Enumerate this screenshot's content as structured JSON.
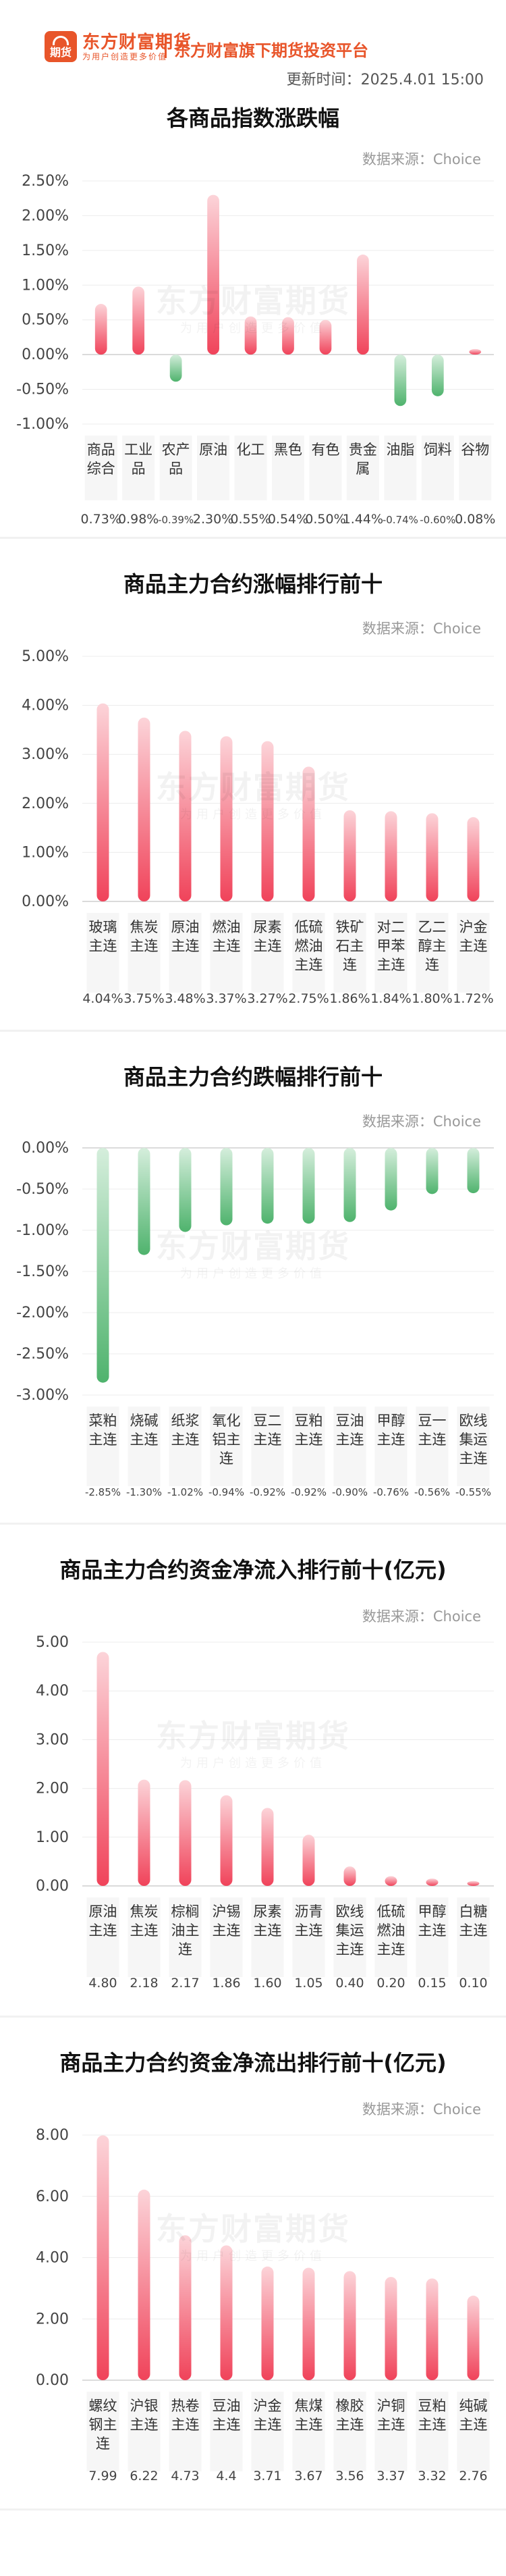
{
  "header": {
    "logo_badge": "期货",
    "logo_name": "东方财富期货",
    "logo_tagline": "为用户创造更多价值",
    "platform": "东方财富旗下期货投资平台",
    "update_time": "更新时间：2025.4.01 15:00"
  },
  "watermark": {
    "name": "东方财富期货",
    "tagline": "为用户创造更多价值"
  },
  "colors": {
    "up": "#f0435a",
    "up_light": "#fcd4d9",
    "down": "#4fb36d",
    "down_light": "#d5eedc"
  },
  "chart_data": [
    {
      "id": "c1",
      "type": "bar",
      "title": "各商品指数涨跌幅",
      "source": "数据来源：Choice",
      "categories": [
        "商品\n综合",
        "工业\n品",
        "农产\n品",
        "原油",
        "化工",
        "黑色",
        "有色",
        "贵金\n属",
        "油脂",
        "饲料",
        "谷物"
      ],
      "values": [
        0.73,
        0.98,
        -0.39,
        2.3,
        0.55,
        0.54,
        0.5,
        1.44,
        -0.74,
        -0.6,
        0.08
      ],
      "value_labels": [
        "0.73%",
        "0.98%",
        "-0.39%",
        "2.30%",
        "0.55%",
        "0.54%",
        "0.50%",
        "1.44%",
        "-0.74%",
        "-0.60%",
        "0.08%"
      ],
      "yticks": [
        2.5,
        2.0,
        1.5,
        1.0,
        0.5,
        0,
        -0.5,
        -1.0
      ],
      "ytick_labels": [
        "2.50%",
        "2.00%",
        "1.50%",
        "1.00%",
        "0.50%",
        "0.00%",
        "-0.50%",
        "-1.00%"
      ],
      "ylim": [
        -1.0,
        2.5
      ]
    },
    {
      "id": "c2",
      "type": "bar",
      "title": "商品主力合约涨幅排行前十",
      "source": "数据来源：Choice",
      "categories": [
        "玻璃\n主连",
        "焦炭\n主连",
        "原油\n主连",
        "燃油\n主连",
        "尿素\n主连",
        "低硫\n燃油\n主连",
        "铁矿\n石主\n连",
        "对二\n甲苯\n主连",
        "乙二\n醇主\n连",
        "沪金\n主连"
      ],
      "values": [
        4.04,
        3.75,
        3.48,
        3.37,
        3.27,
        2.75,
        1.86,
        1.84,
        1.8,
        1.72
      ],
      "value_labels": [
        "4.04%",
        "3.75%",
        "3.48%",
        "3.37%",
        "3.27%",
        "2.75%",
        "1.86%",
        "1.84%",
        "1.80%",
        "1.72%"
      ],
      "yticks": [
        5,
        4,
        3,
        2,
        1,
        0
      ],
      "ytick_labels": [
        "5.00%",
        "4.00%",
        "3.00%",
        "2.00%",
        "1.00%",
        "0.00%"
      ],
      "ylim": [
        0,
        5
      ]
    },
    {
      "id": "c3",
      "type": "bar",
      "title": "商品主力合约跌幅排行前十",
      "source": "数据来源：Choice",
      "categories": [
        "菜粕\n主连",
        "烧碱\n主连",
        "纸浆\n主连",
        "氧化\n铝主\n连",
        "豆二\n主连",
        "豆粕\n主连",
        "豆油\n主连",
        "甲醇\n主连",
        "豆一\n主连",
        "欧线\n集运\n主连"
      ],
      "values": [
        -2.85,
        -1.3,
        -1.02,
        -0.94,
        -0.92,
        -0.92,
        -0.9,
        -0.76,
        -0.56,
        -0.55
      ],
      "value_labels": [
        "-2.85%",
        "-1.30%",
        "-1.02%",
        "-0.94%",
        "-0.92%",
        "-0.92%",
        "-0.90%",
        "-0.76%",
        "-0.56%",
        "-0.55%"
      ],
      "yticks": [
        0,
        -0.5,
        -1.0,
        -1.5,
        -2.0,
        -2.5,
        -3.0
      ],
      "ytick_labels": [
        "0.00%",
        "-0.50%",
        "-1.00%",
        "-1.50%",
        "-2.00%",
        "-2.50%",
        "-3.00%"
      ],
      "ylim": [
        -3,
        0
      ]
    },
    {
      "id": "c4",
      "type": "bar",
      "title": "商品主力合约资金净流入排行前十(亿元)",
      "source": "数据来源：Choice",
      "categories": [
        "原油\n主连",
        "焦炭\n主连",
        "棕榈\n油主\n连",
        "沪锡\n主连",
        "尿素\n主连",
        "沥青\n主连",
        "欧线\n集运\n主连",
        "低硫\n燃油\n主连",
        "甲醇\n主连",
        "白糖\n主连"
      ],
      "values": [
        4.8,
        2.18,
        2.17,
        1.86,
        1.6,
        1.05,
        0.4,
        0.2,
        0.15,
        0.1
      ],
      "value_labels": [
        "4.80",
        "2.18",
        "2.17",
        "1.86",
        "1.60",
        "1.05",
        "0.40",
        "0.20",
        "0.15",
        "0.10"
      ],
      "yticks": [
        5,
        4,
        3,
        2,
        1,
        0
      ],
      "ytick_labels": [
        "5.00",
        "4.00",
        "3.00",
        "2.00",
        "1.00",
        "0.00"
      ],
      "ylim": [
        0,
        5
      ]
    },
    {
      "id": "c5",
      "type": "bar",
      "title": "商品主力合约资金净流出排行前十(亿元)",
      "source": "数据来源：Choice",
      "categories": [
        "螺纹\n钢主\n连",
        "沪银\n主连",
        "热卷\n主连",
        "豆油\n主连",
        "沪金\n主连",
        "焦煤\n主连",
        "橡胶\n主连",
        "沪铜\n主连",
        "豆粕\n主连",
        "纯碱\n主连"
      ],
      "values": [
        7.99,
        6.22,
        4.73,
        4.4,
        3.71,
        3.67,
        3.56,
        3.37,
        3.32,
        2.76
      ],
      "value_labels": [
        "7.99",
        "6.22",
        "4.73",
        "4.4",
        "3.71",
        "3.67",
        "3.56",
        "3.37",
        "3.32",
        "2.76"
      ],
      "yticks": [
        8,
        6,
        4,
        2,
        0
      ],
      "ytick_labels": [
        "8.00",
        "6.00",
        "4.00",
        "2.00",
        "0.00"
      ],
      "ylim": [
        0,
        8
      ]
    }
  ]
}
